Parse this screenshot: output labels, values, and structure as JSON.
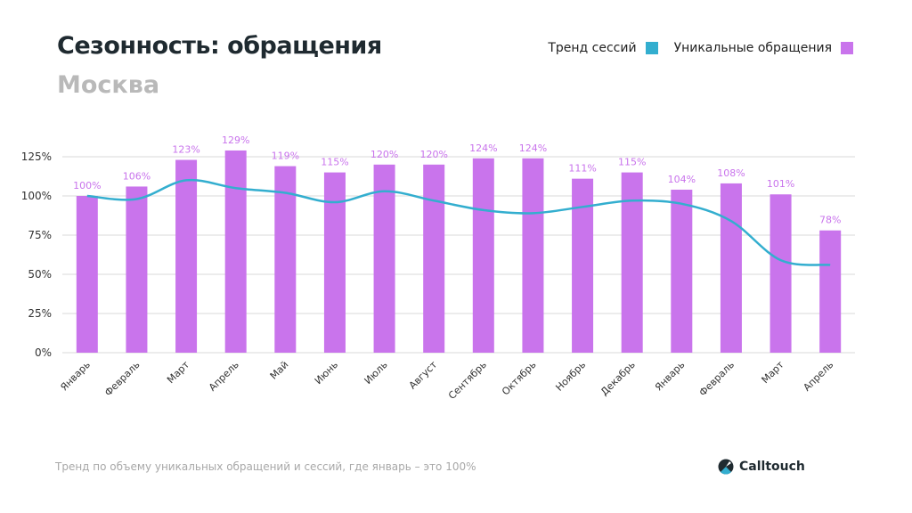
{
  "title": "Сезонность: обращения",
  "subtitle": "Москва",
  "footer": "Тренд по объему уникальных обращений и сессий, где январь – это 100%",
  "logo": "Calltouch",
  "colors": {
    "bars": "#c974ec",
    "line": "#33aecf",
    "labels": "#c974ec"
  },
  "chart_data": {
    "type": "bar",
    "categories": [
      "Январь",
      "Февраль",
      "Март",
      "Апрель",
      "Май",
      "Июнь",
      "Июль",
      "Август",
      "Сентябрь",
      "Октябрь",
      "Ноябрь",
      "Декабрь",
      "Январь",
      "Февраль",
      "Март",
      "Апрель"
    ],
    "series": [
      {
        "name": "Уникальные обращения",
        "type": "bar",
        "values": [
          100,
          106,
          123,
          129,
          119,
          115,
          120,
          120,
          124,
          124,
          111,
          115,
          104,
          108,
          101,
          78
        ]
      },
      {
        "name": "Тренд сессий",
        "type": "line",
        "values": [
          100,
          98,
          110,
          105,
          102,
          96,
          103,
          97,
          91,
          89,
          93,
          97,
          95,
          84,
          59,
          56
        ]
      }
    ],
    "yticks": [
      "0%",
      "25%",
      "50%",
      "75%",
      "100%",
      "125%"
    ],
    "ylim": [
      0,
      125
    ],
    "grid": true,
    "legend": "top-right",
    "data_labels": [
      "100%",
      "106%",
      "123%",
      "129%",
      "119%",
      "115%",
      "120%",
      "120%",
      "124%",
      "124%",
      "111%",
      "115%",
      "104%",
      "108%",
      "101%",
      "78%"
    ]
  }
}
